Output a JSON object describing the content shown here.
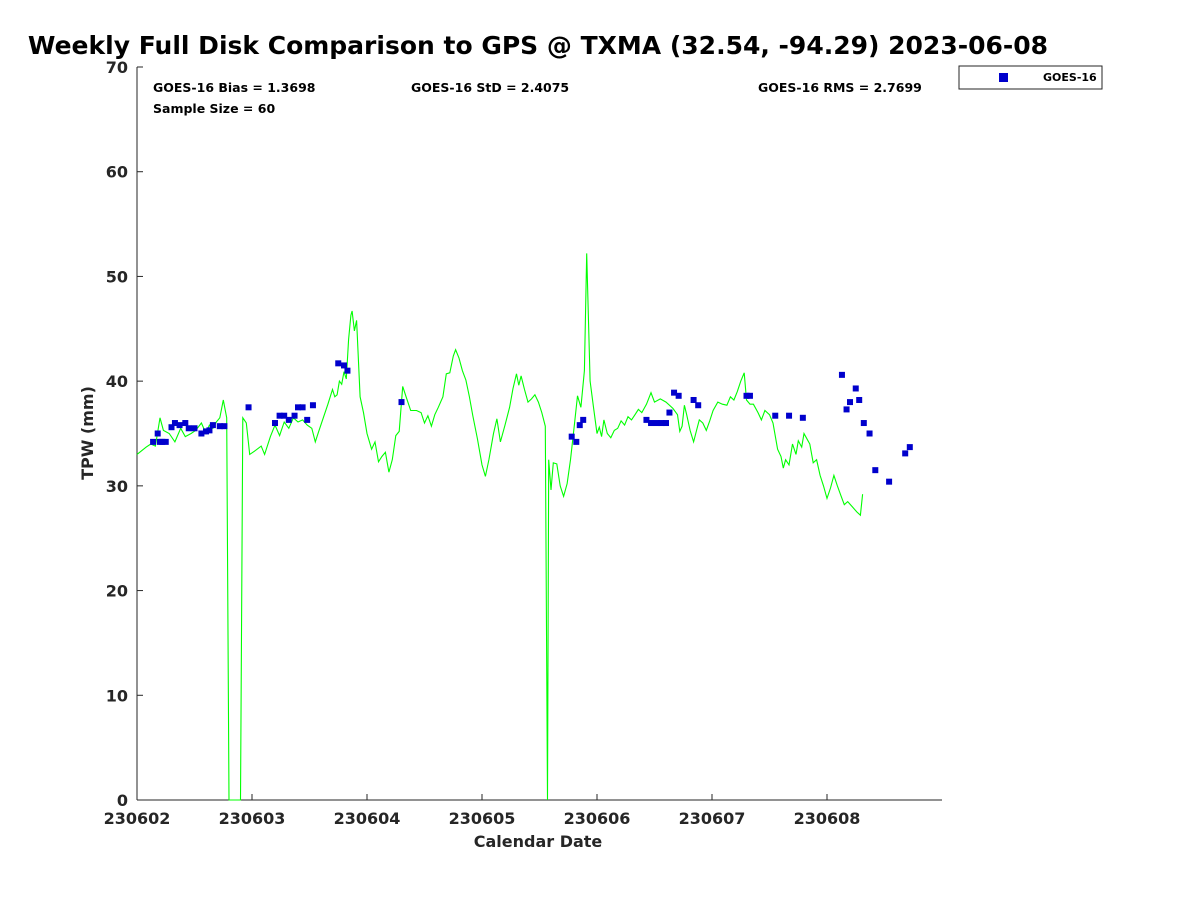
{
  "chart_data": {
    "type": "line",
    "title": "Weekly Full Disk Comparison to GPS @ TXMA (32.54, -94.29) 2023-06-08",
    "xlabel": "Calendar Date",
    "ylabel": "TPW (mm)",
    "x_ticks": [
      "230602",
      "230603",
      "230604",
      "230605",
      "230606",
      "230607",
      "230608"
    ],
    "y_ticks": [
      "0",
      "10",
      "20",
      "30",
      "40",
      "50",
      "60",
      "70"
    ],
    "xlim": [
      0,
      7
    ],
    "ylim": [
      0,
      70
    ],
    "grid": false,
    "legend_position": "outside-top-right",
    "stats": {
      "bias": "GOES-16 Bias = 1.3698",
      "std": "GOES-16 StD = 2.4075",
      "rms": "GOES-16 RMS = 2.7699",
      "sample_size": "Sample Size = 60"
    },
    "series": [
      {
        "color": "#00ff00",
        "kind": "line",
        "points": [
          [
            0.0,
            33.0
          ],
          [
            0.08,
            33.7
          ],
          [
            0.12,
            34.0
          ],
          [
            0.16,
            33.8
          ],
          [
            0.2,
            36.5
          ],
          [
            0.23,
            35.3
          ],
          [
            0.28,
            35.0
          ],
          [
            0.33,
            34.2
          ],
          [
            0.38,
            35.5
          ],
          [
            0.42,
            34.7
          ],
          [
            0.47,
            35.0
          ],
          [
            0.51,
            35.3
          ],
          [
            0.56,
            36.0
          ],
          [
            0.6,
            35.0
          ],
          [
            0.63,
            35.8
          ],
          [
            0.66,
            35.5
          ],
          [
            0.69,
            36.1
          ],
          [
            0.72,
            36.5
          ],
          [
            0.75,
            38.2
          ],
          [
            0.78,
            36.5
          ],
          [
            0.8,
            0
          ],
          [
            0.9,
            0
          ],
          [
            0.92,
            36.5
          ],
          [
            0.95,
            36.0
          ],
          [
            0.98,
            33.0
          ],
          [
            1.02,
            33.3
          ],
          [
            1.08,
            33.8
          ],
          [
            1.11,
            33.0
          ],
          [
            1.16,
            34.7
          ],
          [
            1.2,
            35.8
          ],
          [
            1.24,
            34.8
          ],
          [
            1.28,
            36.1
          ],
          [
            1.32,
            35.5
          ],
          [
            1.36,
            36.5
          ],
          [
            1.4,
            36.1
          ],
          [
            1.44,
            36.3
          ],
          [
            1.48,
            35.8
          ],
          [
            1.52,
            35.5
          ],
          [
            1.55,
            34.2
          ],
          [
            1.58,
            35.2
          ],
          [
            1.62,
            36.5
          ],
          [
            1.66,
            37.8
          ],
          [
            1.7,
            39.2
          ],
          [
            1.72,
            38.5
          ],
          [
            1.74,
            38.7
          ],
          [
            1.76,
            40.0
          ],
          [
            1.78,
            39.7
          ],
          [
            1.8,
            40.9
          ],
          [
            1.82,
            40.2
          ],
          [
            1.84,
            44.0
          ],
          [
            1.86,
            46.3
          ],
          [
            1.87,
            46.7
          ],
          [
            1.89,
            44.8
          ],
          [
            1.91,
            45.8
          ],
          [
            1.94,
            38.5
          ],
          [
            1.97,
            37.0
          ],
          [
            2.0,
            35.0
          ],
          [
            2.04,
            33.5
          ],
          [
            2.07,
            34.2
          ],
          [
            2.1,
            32.3
          ],
          [
            2.13,
            32.8
          ],
          [
            2.16,
            33.2
          ],
          [
            2.19,
            31.3
          ],
          [
            2.22,
            32.5
          ],
          [
            2.25,
            34.8
          ],
          [
            2.28,
            35.2
          ],
          [
            2.31,
            39.5
          ],
          [
            2.34,
            38.5
          ],
          [
            2.38,
            37.2
          ],
          [
            2.43,
            37.2
          ],
          [
            2.47,
            37.0
          ],
          [
            2.5,
            36.0
          ],
          [
            2.53,
            36.7
          ],
          [
            2.56,
            35.7
          ],
          [
            2.59,
            36.8
          ],
          [
            2.62,
            37.5
          ],
          [
            2.66,
            38.5
          ],
          [
            2.69,
            40.7
          ],
          [
            2.72,
            40.8
          ],
          [
            2.75,
            42.4
          ],
          [
            2.77,
            43.0
          ],
          [
            2.8,
            42.2
          ],
          [
            2.83,
            41.0
          ],
          [
            2.86,
            40.1
          ],
          [
            2.89,
            38.5
          ],
          [
            2.92,
            36.7
          ],
          [
            2.96,
            34.5
          ],
          [
            3.0,
            32.0
          ],
          [
            3.03,
            30.9
          ],
          [
            3.06,
            32.5
          ],
          [
            3.1,
            35.0
          ],
          [
            3.13,
            36.4
          ],
          [
            3.16,
            34.2
          ],
          [
            3.2,
            35.8
          ],
          [
            3.24,
            37.5
          ],
          [
            3.27,
            39.3
          ],
          [
            3.3,
            40.7
          ],
          [
            3.32,
            39.6
          ],
          [
            3.34,
            40.5
          ],
          [
            3.37,
            39.2
          ],
          [
            3.4,
            38.0
          ],
          [
            3.43,
            38.3
          ],
          [
            3.46,
            38.7
          ],
          [
            3.49,
            38.0
          ],
          [
            3.52,
            37.0
          ],
          [
            3.55,
            35.7
          ],
          [
            3.57,
            0
          ],
          [
            3.58,
            32.5
          ],
          [
            3.6,
            29.6
          ],
          [
            3.62,
            32.2
          ],
          [
            3.65,
            32.1
          ],
          [
            3.68,
            30.0
          ],
          [
            3.71,
            29.0
          ],
          [
            3.74,
            30.2
          ],
          [
            3.77,
            32.5
          ],
          [
            3.8,
            35.5
          ],
          [
            3.83,
            38.6
          ],
          [
            3.86,
            37.5
          ],
          [
            3.89,
            41.0
          ],
          [
            3.91,
            52.2
          ],
          [
            3.94,
            40.0
          ],
          [
            3.97,
            37.5
          ],
          [
            4.0,
            35.0
          ],
          [
            4.02,
            35.6
          ],
          [
            4.04,
            34.7
          ],
          [
            4.06,
            36.3
          ],
          [
            4.09,
            35.0
          ],
          [
            4.12,
            34.6
          ],
          [
            4.15,
            35.3
          ],
          [
            4.18,
            35.5
          ],
          [
            4.21,
            36.2
          ],
          [
            4.24,
            35.8
          ],
          [
            4.27,
            36.6
          ],
          [
            4.3,
            36.3
          ],
          [
            4.33,
            36.8
          ],
          [
            4.36,
            37.3
          ],
          [
            4.39,
            37.0
          ],
          [
            4.43,
            37.8
          ],
          [
            4.47,
            38.9
          ],
          [
            4.5,
            38.0
          ],
          [
            4.55,
            38.3
          ],
          [
            4.6,
            38.0
          ],
          [
            4.66,
            37.4
          ],
          [
            4.7,
            36.8
          ],
          [
            4.72,
            35.2
          ],
          [
            4.74,
            35.7
          ],
          [
            4.76,
            37.7
          ],
          [
            4.78,
            36.8
          ],
          [
            4.81,
            35.3
          ],
          [
            4.84,
            34.2
          ],
          [
            4.87,
            35.5
          ],
          [
            4.89,
            36.3
          ],
          [
            4.92,
            36.0
          ],
          [
            4.95,
            35.3
          ],
          [
            4.98,
            36.2
          ],
          [
            5.01,
            37.2
          ],
          [
            5.05,
            38.0
          ],
          [
            5.09,
            37.8
          ],
          [
            5.13,
            37.7
          ],
          [
            5.16,
            38.5
          ],
          [
            5.19,
            38.2
          ],
          [
            5.22,
            39.0
          ],
          [
            5.25,
            40.0
          ],
          [
            5.28,
            40.8
          ],
          [
            5.3,
            38.2
          ],
          [
            5.33,
            37.8
          ],
          [
            5.36,
            37.8
          ],
          [
            5.4,
            37.0
          ],
          [
            5.43,
            36.3
          ],
          [
            5.46,
            37.2
          ],
          [
            5.5,
            36.8
          ],
          [
            5.53,
            36.0
          ],
          [
            5.57,
            33.5
          ],
          [
            5.6,
            32.8
          ],
          [
            5.62,
            31.7
          ],
          [
            5.64,
            32.5
          ],
          [
            5.67,
            32.0
          ],
          [
            5.7,
            34.0
          ],
          [
            5.73,
            33.0
          ],
          [
            5.75,
            34.3
          ],
          [
            5.78,
            33.7
          ],
          [
            5.8,
            35.0
          ],
          [
            5.82,
            34.6
          ],
          [
            5.85,
            34.0
          ],
          [
            5.88,
            32.2
          ],
          [
            5.91,
            32.5
          ],
          [
            5.94,
            31.0
          ],
          [
            5.97,
            30.0
          ],
          [
            6.0,
            28.8
          ],
          [
            6.03,
            29.8
          ],
          [
            6.06,
            31.0
          ],
          [
            6.09,
            30.0
          ],
          [
            6.12,
            29.1
          ],
          [
            6.15,
            28.2
          ],
          [
            6.18,
            28.5
          ],
          [
            6.22,
            28.0
          ],
          [
            6.26,
            27.5
          ],
          [
            6.29,
            27.2
          ],
          [
            6.31,
            29.2
          ]
        ]
      },
      {
        "name": "GOES-16",
        "color": "#0000cc",
        "kind": "marker",
        "points": [
          [
            0.14,
            34.2
          ],
          [
            0.18,
            35.0
          ],
          [
            0.2,
            34.2
          ],
          [
            0.22,
            34.2
          ],
          [
            0.25,
            34.2
          ],
          [
            0.3,
            35.6
          ],
          [
            0.33,
            36.0
          ],
          [
            0.37,
            35.8
          ],
          [
            0.42,
            36.0
          ],
          [
            0.45,
            35.5
          ],
          [
            0.5,
            35.5
          ],
          [
            0.56,
            35.0
          ],
          [
            0.6,
            35.2
          ],
          [
            0.63,
            35.3
          ],
          [
            0.66,
            35.8
          ],
          [
            0.72,
            35.7
          ],
          [
            0.76,
            35.7
          ],
          [
            0.97,
            37.5
          ],
          [
            1.2,
            36.0
          ],
          [
            1.24,
            36.7
          ],
          [
            1.28,
            36.7
          ],
          [
            1.32,
            36.3
          ],
          [
            1.37,
            36.7
          ],
          [
            1.4,
            37.5
          ],
          [
            1.44,
            37.5
          ],
          [
            1.48,
            36.3
          ],
          [
            1.53,
            37.7
          ],
          [
            1.75,
            41.7
          ],
          [
            1.8,
            41.5
          ],
          [
            1.83,
            41.0
          ],
          [
            2.3,
            38.0
          ],
          [
            3.78,
            34.7
          ],
          [
            3.82,
            34.2
          ],
          [
            3.85,
            35.8
          ],
          [
            3.88,
            36.3
          ],
          [
            4.43,
            36.3
          ],
          [
            4.47,
            36.0
          ],
          [
            4.52,
            36.0
          ],
          [
            4.56,
            36.0
          ],
          [
            4.6,
            36.0
          ],
          [
            4.63,
            37.0
          ],
          [
            4.67,
            38.9
          ],
          [
            4.71,
            38.6
          ],
          [
            4.84,
            38.2
          ],
          [
            4.88,
            37.7
          ],
          [
            5.3,
            38.6
          ],
          [
            5.33,
            38.6
          ],
          [
            5.55,
            36.7
          ],
          [
            5.67,
            36.7
          ],
          [
            5.79,
            36.5
          ],
          [
            6.13,
            40.6
          ],
          [
            6.17,
            37.3
          ],
          [
            6.2,
            38.0
          ],
          [
            6.25,
            39.3
          ],
          [
            6.28,
            38.2
          ],
          [
            6.32,
            36.0
          ],
          [
            6.37,
            35.0
          ],
          [
            6.42,
            31.5
          ],
          [
            6.54,
            30.4
          ],
          [
            6.68,
            33.1
          ],
          [
            6.72,
            33.7
          ]
        ]
      }
    ]
  }
}
